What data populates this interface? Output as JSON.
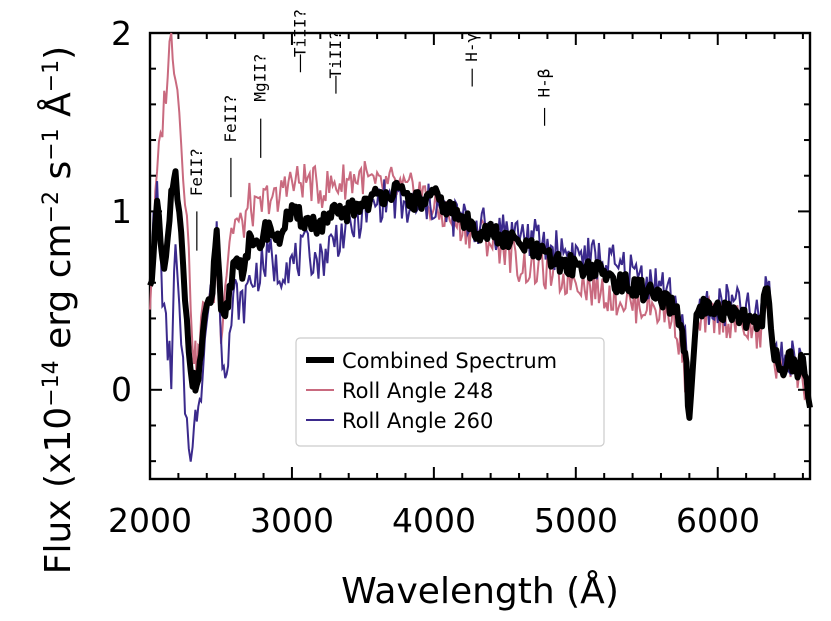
{
  "chart_data": {
    "type": "line",
    "title": "",
    "xlabel": "Wavelength (Å)",
    "ylabel": "Flux (x10",
    "ylabel_exp": "−14",
    "ylabel_unit_main": " erg cm",
    "ylabel_unit_exp1": "−2",
    "ylabel_unit_mid": " s",
    "ylabel_unit_exp2": "−1",
    "ylabel_unit_tail": " Å",
    "ylabel_unit_exp3": "−1",
    "ylabel_close": ")",
    "xlim": [
      2000,
      6650
    ],
    "ylim": [
      -0.5,
      2.0
    ],
    "x_ticks": [
      2000,
      3000,
      4000,
      5000,
      6000
    ],
    "x_tick_labels": [
      "2000",
      "3000",
      "4000",
      "5000",
      "6000"
    ],
    "y_ticks": [
      0,
      1,
      2
    ],
    "y_tick_labels": [
      "0",
      "1",
      "2"
    ],
    "legend_position": "lower-center",
    "colors": {
      "combined": "#000000",
      "roll248": "#c96a7f",
      "roll260": "#3b2a8c"
    },
    "series": [
      {
        "name": "Combined Spectrum",
        "x": [
          2000,
          2050,
          2100,
          2150,
          2180,
          2220,
          2260,
          2300,
          2330,
          2360,
          2400,
          2440,
          2470,
          2500,
          2530,
          2560,
          2600,
          2650,
          2700,
          2750,
          2800,
          2850,
          2900,
          2950,
          3000,
          3100,
          3200,
          3300,
          3400,
          3500,
          3600,
          3700,
          3800,
          3900,
          4000,
          4100,
          4200,
          4300,
          4400,
          4500,
          4600,
          4700,
          4800,
          4900,
          5000,
          5100,
          5200,
          5300,
          5400,
          5500,
          5600,
          5700,
          5750,
          5780,
          5800,
          5850,
          5900,
          6000,
          6100,
          6200,
          6300,
          6350,
          6400,
          6450,
          6500,
          6550,
          6600,
          6650
        ],
        "values": [
          0.55,
          1.02,
          0.62,
          1.08,
          1.18,
          0.85,
          0.38,
          0.05,
          0.02,
          0.2,
          0.45,
          0.55,
          0.92,
          0.4,
          0.38,
          0.55,
          0.75,
          0.68,
          0.82,
          0.78,
          0.88,
          0.92,
          0.82,
          0.95,
          0.98,
          0.95,
          0.92,
          0.98,
          1.0,
          1.05,
          1.08,
          1.12,
          1.08,
          1.05,
          1.08,
          1.02,
          0.95,
          0.9,
          0.88,
          0.84,
          0.82,
          0.78,
          0.74,
          0.7,
          0.7,
          0.68,
          0.65,
          0.6,
          0.58,
          0.55,
          0.5,
          0.45,
          0.35,
          0.1,
          -0.2,
          0.38,
          0.45,
          0.44,
          0.44,
          0.4,
          0.35,
          0.6,
          0.2,
          0.1,
          0.18,
          0.12,
          0.15,
          -0.1
        ]
      },
      {
        "name": "Roll Angle 248",
        "x": [
          2000,
          2050,
          2100,
          2150,
          2180,
          2220,
          2260,
          2300,
          2330,
          2360,
          2400,
          2440,
          2470,
          2500,
          2530,
          2560,
          2600,
          2650,
          2700,
          2750,
          2800,
          2850,
          2900,
          2950,
          3000,
          3100,
          3200,
          3300,
          3400,
          3500,
          3600,
          3700,
          3800,
          3900,
          4000,
          4100,
          4200,
          4300,
          4400,
          4500,
          4600,
          4700,
          4800,
          4900,
          5000,
          5100,
          5200,
          5300,
          5400,
          5500,
          5600,
          5700,
          5750,
          5780,
          5800,
          5850,
          5900,
          6000,
          6100,
          6200,
          6300,
          6350,
          6400,
          6450,
          6500,
          6550,
          6600,
          6650
        ],
        "values": [
          0.5,
          1.2,
          1.6,
          2.0,
          1.8,
          1.45,
          0.95,
          0.3,
          0.1,
          0.35,
          0.55,
          0.5,
          0.7,
          0.35,
          0.6,
          0.85,
          0.95,
          0.9,
          1.05,
          0.98,
          1.05,
          1.1,
          1.02,
          1.2,
          1.15,
          1.18,
          1.12,
          1.15,
          1.18,
          1.2,
          1.12,
          1.15,
          1.1,
          1.12,
          1.0,
          0.98,
          0.92,
          0.88,
          0.84,
          0.8,
          0.7,
          0.68,
          0.66,
          0.62,
          0.64,
          0.58,
          0.55,
          0.52,
          0.48,
          0.48,
          0.45,
          0.4,
          0.2,
          0.0,
          -0.15,
          0.3,
          0.4,
          0.42,
          0.38,
          0.35,
          0.3,
          0.5,
          0.15,
          0.1,
          0.2,
          0.1,
          0.05,
          -0.05
        ]
      },
      {
        "name": "Roll Angle 260",
        "x": [
          2000,
          2050,
          2100,
          2150,
          2180,
          2220,
          2260,
          2300,
          2330,
          2360,
          2400,
          2440,
          2470,
          2500,
          2530,
          2560,
          2600,
          2650,
          2700,
          2750,
          2800,
          2850,
          2900,
          2950,
          3000,
          3100,
          3200,
          3300,
          3400,
          3500,
          3600,
          3700,
          3800,
          3900,
          4000,
          4100,
          4200,
          4300,
          4400,
          4500,
          4600,
          4700,
          4800,
          4900,
          5000,
          5100,
          5200,
          5300,
          5400,
          5500,
          5600,
          5700,
          5750,
          5780,
          5800,
          5850,
          5900,
          6000,
          6100,
          6200,
          6300,
          6350,
          6400,
          6450,
          6500,
          6550,
          6600,
          6650
        ],
        "values": [
          0.7,
          1.1,
          0.4,
          0.1,
          0.8,
          0.2,
          -0.2,
          -0.35,
          -0.1,
          0.05,
          0.4,
          0.6,
          0.95,
          0.25,
          0.15,
          0.3,
          0.55,
          0.45,
          0.6,
          0.65,
          0.7,
          0.75,
          0.65,
          0.72,
          0.7,
          0.78,
          0.72,
          0.85,
          0.9,
          0.98,
          1.05,
          1.08,
          1.0,
          1.02,
          1.05,
          0.98,
          0.95,
          0.92,
          0.9,
          0.9,
          0.88,
          0.85,
          0.8,
          0.78,
          0.76,
          0.74,
          0.72,
          0.68,
          0.66,
          0.62,
          0.58,
          0.5,
          0.4,
          0.15,
          -0.15,
          0.4,
          0.48,
          0.46,
          0.48,
          0.44,
          0.4,
          0.65,
          0.25,
          0.15,
          0.22,
          0.15,
          0.2,
          -0.05
        ]
      }
    ],
    "annotations": [
      {
        "label": "FeII?",
        "x": 2330,
        "tick_y": [
          0.78,
          1.0
        ],
        "text_y": 1.22
      },
      {
        "label": "FeII?",
        "x": 2570,
        "tick_y": [
          1.08,
          1.3
        ],
        "text_y": 1.52
      },
      {
        "label": "MgII?",
        "x": 2780,
        "tick_y": [
          1.3,
          1.52
        ],
        "text_y": 1.75
      },
      {
        "label": "TiII?",
        "x": 3060,
        "tick_y": [
          1.78,
          1.88
        ],
        "text_y": 2.0
      },
      {
        "label": "TiII?",
        "x": 3310,
        "tick_y": [
          1.66,
          1.76
        ],
        "text_y": 1.88
      },
      {
        "label": "H-γ",
        "x": 4270,
        "tick_y": [
          1.7,
          1.8
        ],
        "text_y": 1.92
      },
      {
        "label": "H-β",
        "x": 4780,
        "tick_y": [
          1.48,
          1.58
        ],
        "text_y": 1.72
      }
    ]
  }
}
